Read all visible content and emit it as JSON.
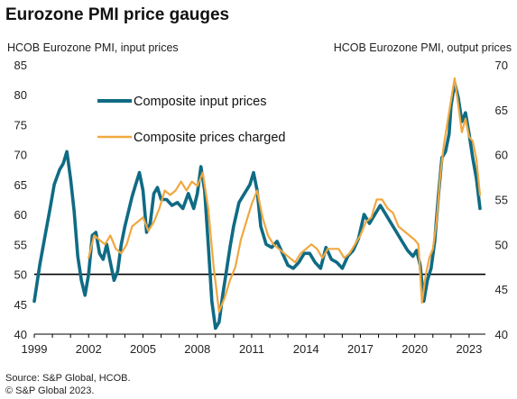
{
  "chart_data": {
    "type": "line",
    "title": "Eurozone PMI price gauges",
    "left_axis_label": "HCOB  Eurozone PMI, input prices",
    "right_axis_label": "HCOB  Eurozone PMI, output prices",
    "left_ylim": [
      40,
      85
    ],
    "left_yticks": [
      40,
      45,
      50,
      55,
      60,
      65,
      70,
      75,
      80,
      85
    ],
    "right_ylim": [
      40,
      70
    ],
    "right_yticks": [
      40,
      45,
      50,
      55,
      60,
      65,
      70
    ],
    "xlim": [
      1999.0,
      2023.9
    ],
    "xticks": [
      1999,
      2002,
      2005,
      2008,
      2011,
      2014,
      2017,
      2020,
      2023
    ],
    "reference_line": 50,
    "grid": false,
    "legend_position": "upper-left",
    "series": [
      {
        "name": "Composite input prices",
        "axis": "left",
        "color": "#0f6b84",
        "x": [
          1999.0,
          1999.3,
          1999.6,
          1999.9,
          2000.1,
          2000.4,
          2000.6,
          2000.8,
          2001.0,
          2001.2,
          2001.4,
          2001.6,
          2001.8,
          2002.0,
          2002.2,
          2002.4,
          2002.6,
          2002.8,
          2003.0,
          2003.2,
          2003.4,
          2003.6,
          2003.8,
          2004.0,
          2004.2,
          2004.4,
          2004.6,
          2004.8,
          2005.0,
          2005.2,
          2005.4,
          2005.6,
          2005.8,
          2006.0,
          2006.3,
          2006.6,
          2006.9,
          2007.2,
          2007.5,
          2007.8,
          2008.0,
          2008.2,
          2008.4,
          2008.6,
          2008.8,
          2009.0,
          2009.2,
          2009.4,
          2009.6,
          2009.8,
          2010.0,
          2010.3,
          2010.6,
          2010.9,
          2011.1,
          2011.3,
          2011.5,
          2011.8,
          2012.1,
          2012.4,
          2012.7,
          2013.0,
          2013.3,
          2013.6,
          2013.9,
          2014.2,
          2014.5,
          2014.8,
          2015.1,
          2015.4,
          2015.7,
          2016.0,
          2016.3,
          2016.6,
          2016.9,
          2017.2,
          2017.5,
          2017.8,
          2018.1,
          2018.4,
          2018.7,
          2019.0,
          2019.3,
          2019.6,
          2019.9,
          2020.1,
          2020.3,
          2020.5,
          2020.7,
          2020.9,
          2021.1,
          2021.3,
          2021.5,
          2021.7,
          2021.9,
          2022.0,
          2022.2,
          2022.4,
          2022.6,
          2022.8,
          2023.0,
          2023.2,
          2023.4,
          2023.6
        ],
        "values": [
          45.5,
          51.5,
          56.5,
          61.5,
          65.0,
          67.5,
          68.5,
          70.5,
          66.0,
          60.5,
          53.0,
          49.0,
          46.5,
          50.0,
          56.5,
          57.0,
          53.5,
          52.5,
          55.0,
          52.0,
          49.0,
          50.5,
          55.0,
          58.0,
          60.5,
          63.0,
          65.0,
          67.0,
          64.0,
          57.0,
          58.5,
          63.5,
          64.5,
          62.5,
          62.5,
          61.5,
          62.0,
          61.0,
          63.5,
          61.0,
          63.5,
          68.0,
          64.0,
          55.0,
          45.5,
          41.0,
          42.0,
          46.5,
          50.5,
          54.5,
          58.0,
          62.0,
          63.5,
          65.0,
          67.0,
          64.0,
          58.0,
          55.0,
          54.5,
          55.5,
          53.5,
          51.5,
          51.0,
          52.0,
          53.5,
          53.5,
          52.0,
          51.0,
          54.5,
          52.5,
          52.0,
          51.0,
          53.0,
          54.0,
          56.0,
          60.0,
          58.5,
          60.0,
          61.5,
          60.0,
          58.5,
          57.0,
          55.5,
          54.0,
          53.0,
          54.0,
          51.5,
          45.5,
          49.0,
          51.0,
          55.5,
          63.0,
          69.5,
          70.5,
          73.5,
          78.0,
          82.0,
          79.5,
          75.5,
          77.0,
          73.5,
          69.5,
          66.0,
          61.0
        ]
      },
      {
        "name": "Composite prices charged",
        "axis": "right",
        "color": "#f0a840",
        "x": [
          2002.0,
          2002.3,
          2002.6,
          2002.9,
          2003.2,
          2003.5,
          2003.8,
          2004.1,
          2004.4,
          2004.7,
          2005.0,
          2005.3,
          2005.6,
          2005.9,
          2006.2,
          2006.5,
          2006.8,
          2007.1,
          2007.4,
          2007.7,
          2008.0,
          2008.3,
          2008.6,
          2008.9,
          2009.2,
          2009.5,
          2009.8,
          2010.1,
          2010.4,
          2010.7,
          2011.0,
          2011.3,
          2011.6,
          2011.9,
          2012.2,
          2012.5,
          2012.8,
          2013.1,
          2013.4,
          2013.7,
          2014.0,
          2014.3,
          2014.6,
          2014.9,
          2015.2,
          2015.5,
          2015.8,
          2016.1,
          2016.4,
          2016.7,
          2017.0,
          2017.3,
          2017.6,
          2017.9,
          2018.2,
          2018.5,
          2018.8,
          2019.1,
          2019.4,
          2019.7,
          2020.0,
          2020.2,
          2020.4,
          2020.6,
          2020.8,
          2021.0,
          2021.2,
          2021.4,
          2021.6,
          2021.8,
          2022.0,
          2022.2,
          2022.4,
          2022.6,
          2022.8,
          2023.0,
          2023.2,
          2023.4,
          2023.6
        ],
        "values": [
          48.5,
          51.0,
          50.5,
          50.0,
          51.0,
          49.5,
          49.0,
          50.0,
          52.0,
          52.5,
          53.0,
          51.5,
          52.5,
          54.0,
          56.0,
          55.5,
          56.0,
          57.0,
          56.0,
          57.0,
          56.5,
          58.0,
          54.0,
          47.5,
          42.5,
          44.0,
          46.0,
          47.5,
          50.5,
          52.5,
          54.5,
          56.0,
          53.0,
          51.0,
          50.0,
          49.5,
          49.0,
          48.5,
          48.0,
          49.0,
          49.5,
          50.0,
          49.5,
          48.5,
          49.5,
          49.5,
          49.5,
          48.5,
          49.0,
          50.0,
          51.0,
          52.5,
          53.0,
          55.0,
          55.0,
          54.0,
          53.5,
          52.0,
          51.5,
          51.0,
          50.5,
          50.0,
          43.5,
          46.5,
          48.5,
          49.5,
          52.5,
          57.5,
          61.0,
          63.5,
          66.0,
          68.5,
          65.5,
          62.5,
          64.0,
          62.0,
          61.5,
          59.5,
          55.5
        ]
      }
    ]
  },
  "footer": {
    "source": "Source: S&P Global, HCOB.",
    "copyright": "© S&P Global 2023."
  }
}
